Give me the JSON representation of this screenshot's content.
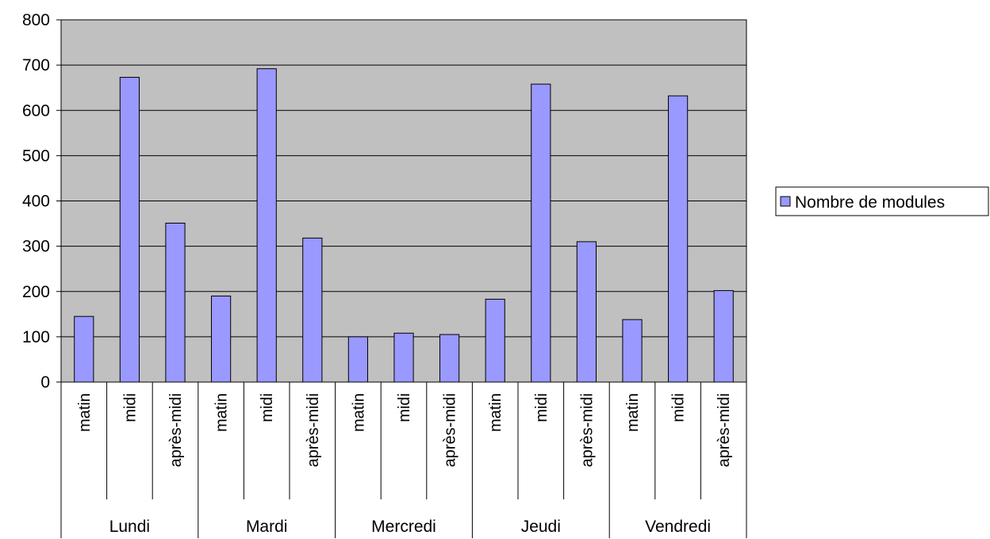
{
  "chart_data": {
    "type": "bar",
    "groups": [
      "Lundi",
      "Mardi",
      "Mercredi",
      "Jeudi",
      "Vendredi"
    ],
    "subcategories": [
      "matin",
      "midi",
      "après-midi"
    ],
    "series": [
      {
        "name": "Nombre de modules",
        "values": [
          145,
          673,
          351,
          190,
          692,
          318,
          100,
          108,
          105,
          183,
          658,
          310,
          138,
          632,
          202
        ]
      }
    ],
    "yticks": [
      "0",
      "100",
      "200",
      "300",
      "400",
      "500",
      "600",
      "700",
      "800"
    ],
    "ylim": [
      0,
      800
    ],
    "grid": true,
    "legend_position": "right",
    "colors": {
      "bar": "#9999ff",
      "plot_background": "#c0c0c0",
      "grid": "#000000"
    }
  }
}
